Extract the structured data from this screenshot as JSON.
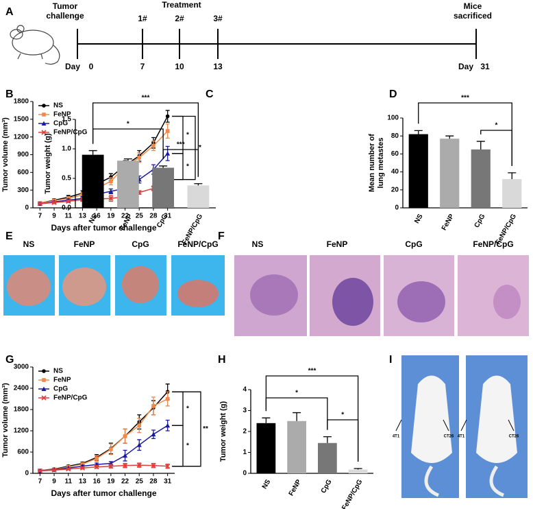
{
  "panels": [
    "A",
    "B",
    "C",
    "D",
    "E",
    "F",
    "G",
    "H",
    "I"
  ],
  "timeline": {
    "start_label": [
      "Tumor",
      "challenge"
    ],
    "treatment": "Treatment",
    "doses": [
      "1#",
      "2#",
      "3#"
    ],
    "end_label": [
      "Mice",
      "sacrificed"
    ],
    "day_label": "Day",
    "days": [
      0,
      7,
      10,
      13,
      31
    ]
  },
  "photos_e": [
    "NS",
    "FeNP",
    "CpG",
    "FeNP/CpG"
  ],
  "histology_f": [
    "NS",
    "FeNP",
    "CpG",
    "FeNP/CpG"
  ],
  "mice_i": [
    {
      "left": "4T1",
      "right": "CT26"
    },
    {
      "left": "4T1",
      "right": "CT26"
    }
  ],
  "chart_data": [
    {
      "type": "line",
      "y_label": "Tumor volume (mm³)",
      "x_label": "Days after tumor challenge",
      "legend": "upper left",
      "categories": [
        "7",
        "9",
        "11",
        "13",
        "16",
        "19",
        "22",
        "25",
        "28",
        "31"
      ],
      "ylim": [
        0,
        1800
      ],
      "yticks": [
        0,
        300,
        600,
        900,
        1200,
        1500,
        1800
      ],
      "series": [
        {
          "name": "NS",
          "color": "#000000",
          "marker": "circle",
          "values": [
            80,
            130,
            180,
            250,
            400,
            520,
            720,
            880,
            1100,
            1550
          ],
          "errors": [
            10,
            20,
            30,
            40,
            70,
            60,
            80,
            90,
            90,
            100
          ]
        },
        {
          "name": "FeNP",
          "color": "#f08a4b",
          "marker": "square",
          "values": [
            80,
            120,
            160,
            220,
            330,
            450,
            700,
            850,
            1050,
            1300
          ],
          "errors": [
            10,
            20,
            30,
            40,
            60,
            60,
            80,
            80,
            80,
            120
          ]
        },
        {
          "name": "CpG",
          "color": "#1a1aa0",
          "marker": "triangle",
          "values": [
            70,
            100,
            130,
            160,
            230,
            280,
            330,
            480,
            650,
            920
          ],
          "errors": [
            10,
            15,
            20,
            30,
            40,
            40,
            50,
            60,
            80,
            120
          ]
        },
        {
          "name": "FeNP/CpG",
          "color": "#e03c3c",
          "marker": "x",
          "values": [
            70,
            90,
            110,
            140,
            150,
            160,
            190,
            260,
            330,
            480
          ],
          "errors": [
            10,
            15,
            20,
            30,
            50,
            50,
            20,
            30,
            40,
            70
          ]
        }
      ],
      "annotations": [
        "*",
        "*",
        "*"
      ]
    },
    {
      "type": "bar",
      "y_label": "Tumor weight (g)",
      "categories": [
        "NS",
        "FeNP",
        "CpG",
        "FeNP/CpG"
      ],
      "values": [
        0.9,
        0.8,
        0.68,
        0.38
      ],
      "errors": [
        0.07,
        0.03,
        0.03,
        0.03
      ],
      "colors": [
        "#000000",
        "#ababab",
        "#777777",
        "#d9d9d9"
      ],
      "ylim": [
        0,
        1.5
      ],
      "yticks": [
        {
          "value": 0,
          "label": "0.0"
        },
        0.5,
        {
          "value": 1,
          "label": "1.0"
        },
        1.5
      ],
      "annotations": [
        "***",
        "*",
        "***"
      ]
    },
    {
      "type": "bar",
      "y_label": [
        "Mean number of",
        "lung metastes"
      ],
      "categories": [
        "NS",
        "FeNP",
        "CpG",
        "FeNP/CpG"
      ],
      "values": [
        82,
        77,
        65,
        32
      ],
      "errors": [
        4,
        3,
        9,
        7
      ],
      "colors": [
        "#000000",
        "#ababab",
        "#777777",
        "#d9d9d9"
      ],
      "ylim": [
        0,
        100
      ],
      "yticks": [
        0,
        20,
        40,
        60,
        80,
        100
      ],
      "annotations": [
        "***",
        "*"
      ]
    },
    {
      "type": "line",
      "y_label": "Tumor volume (mm³)",
      "x_label": "Days after tumor challenge",
      "legend": "upper left",
      "categories": [
        "7",
        "9",
        "11",
        "13",
        "16",
        "19",
        "22",
        "25",
        "28",
        "31"
      ],
      "ylim": [
        0,
        3000
      ],
      "yticks": [
        0,
        600,
        1200,
        1800,
        2400,
        3000
      ],
      "series": [
        {
          "name": "NS",
          "color": "#000000",
          "marker": "circle",
          "values": [
            80,
            120,
            200,
            280,
            450,
            700,
            1050,
            1450,
            1850,
            2300
          ],
          "errors": [
            10,
            20,
            30,
            40,
            80,
            150,
            200,
            200,
            200,
            220
          ]
        },
        {
          "name": "FeNP",
          "color": "#f08a4b",
          "marker": "square",
          "values": [
            80,
            110,
            180,
            260,
            420,
            680,
            1050,
            1350,
            1900,
            2100
          ],
          "errors": [
            10,
            20,
            30,
            40,
            80,
            150,
            200,
            200,
            250,
            200
          ]
        },
        {
          "name": "CpG",
          "color": "#1a1aa0",
          "marker": "triangle",
          "values": [
            70,
            100,
            150,
            200,
            250,
            280,
            500,
            800,
            1100,
            1350
          ],
          "errors": [
            10,
            15,
            20,
            30,
            40,
            50,
            150,
            150,
            120,
            150
          ]
        },
        {
          "name": "FeNP/CpG",
          "color": "#e03c3c",
          "marker": "x",
          "values": [
            70,
            90,
            120,
            150,
            180,
            200,
            220,
            230,
            220,
            200
          ],
          "errors": [
            10,
            15,
            20,
            30,
            40,
            50,
            60,
            60,
            60,
            60
          ]
        }
      ],
      "annotations": [
        "*",
        "*",
        "**"
      ]
    },
    {
      "type": "bar",
      "y_label": "Tumor weight (g)",
      "categories": [
        "NS",
        "FeNP",
        "CpG",
        "FeNP/CpG"
      ],
      "values": [
        2.4,
        2.5,
        1.45,
        0.18
      ],
      "errors": [
        0.25,
        0.4,
        0.3,
        0.05
      ],
      "colors": [
        "#000000",
        "#ababab",
        "#777777",
        "#d9d9d9"
      ],
      "ylim": [
        0,
        4
      ],
      "yticks": [
        0,
        1,
        2,
        3,
        4
      ],
      "annotations": [
        "***",
        "*",
        "*"
      ]
    }
  ]
}
